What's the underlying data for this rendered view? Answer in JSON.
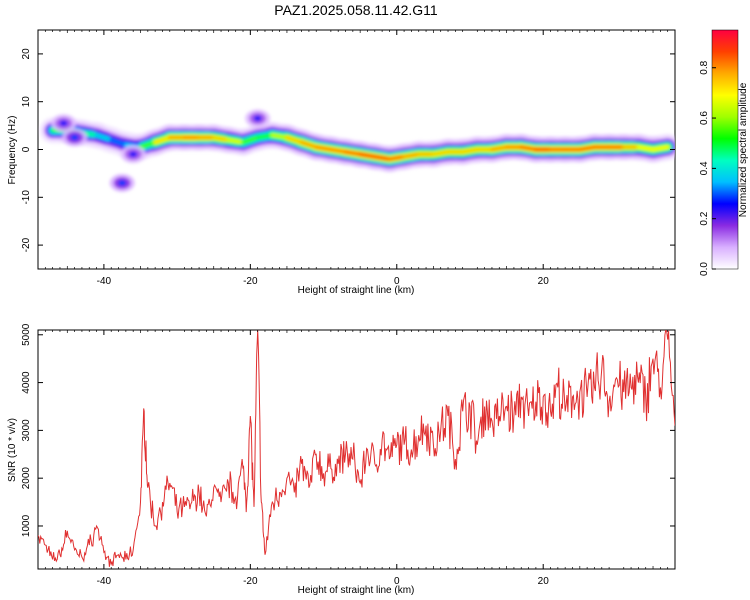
{
  "chart_data": [
    {
      "type": "heatmap",
      "title": "PAZ1.2025.058.11.42.G11",
      "xlabel": "Height of straight line (km)",
      "ylabel": "Frequency (Hz)",
      "xlim": [
        -49,
        38
      ],
      "ylim": [
        -25,
        25
      ],
      "xticks": [
        -40,
        -20,
        0,
        20
      ],
      "yticks": [
        20,
        10,
        0,
        -10,
        -20
      ],
      "grid": false,
      "colorbar": {
        "label": "Normalized spectral amplitude",
        "range": [
          0,
          0.95
        ],
        "ticks": [
          "0.0",
          "0.2",
          "0.4",
          "0.6",
          "0.8"
        ],
        "colors": [
          "#ffffff",
          "#d9b0ff",
          "#8a2be2",
          "#0000ff",
          "#00bfff",
          "#00ffc0",
          "#00ff00",
          "#a0ff00",
          "#ffff00",
          "#ffaa00",
          "#ff4000",
          "#ff0040"
        ]
      },
      "ridge": {
        "x": [
          -47,
          -45,
          -43,
          -41,
          -39,
          -37,
          -35,
          -33,
          -31,
          -29,
          -27,
          -25,
          -23,
          -21,
          -19,
          -17,
          -15,
          -13,
          -11,
          -9,
          -7,
          -5,
          -3,
          -1,
          1,
          3,
          5,
          7,
          9,
          11,
          13,
          15,
          17,
          19,
          21,
          23,
          25,
          27,
          29,
          31,
          33,
          35,
          37
        ],
        "y": [
          4,
          4,
          3.5,
          3,
          2,
          1,
          0.5,
          1.5,
          2.5,
          2.5,
          2.5,
          2.5,
          2,
          1.5,
          2.5,
          3,
          2.5,
          1.5,
          0.5,
          0,
          -0.5,
          -1,
          -1.5,
          -2,
          -1.5,
          -1,
          -1,
          -0.5,
          -0.5,
          0,
          0,
          0.5,
          0.5,
          0,
          0,
          0,
          0,
          0.5,
          0.5,
          0.5,
          0.5,
          0,
          0.5
        ],
        "amplitude": [
          0.5,
          0.55,
          0.5,
          0.45,
          0.35,
          0.3,
          0.45,
          0.7,
          0.8,
          0.85,
          0.85,
          0.8,
          0.75,
          0.65,
          0.5,
          0.6,
          0.75,
          0.8,
          0.85,
          0.85,
          0.85,
          0.9,
          0.9,
          0.9,
          0.85,
          0.8,
          0.8,
          0.75,
          0.8,
          0.75,
          0.8,
          0.85,
          0.85,
          0.9,
          0.9,
          0.85,
          0.9,
          0.85,
          0.9,
          0.85,
          0.75,
          0.7,
          0.75
        ]
      },
      "blobs": [
        {
          "x": -45.5,
          "y": 5.5,
          "amplitude": 0.25
        },
        {
          "x": -37.5,
          "y": -7,
          "amplitude": 0.3
        },
        {
          "x": -36,
          "y": -1,
          "amplitude": 0.25
        },
        {
          "x": -19,
          "y": 6.5,
          "amplitude": 0.25
        },
        {
          "x": -44,
          "y": 2.5,
          "amplitude": 0.3
        }
      ]
    },
    {
      "type": "line",
      "xlabel": "Height of straight line (km)",
      "ylabel": "SNR (10 * v/v)",
      "xlim": [
        -49,
        38
      ],
      "ylim": [
        100,
        5100
      ],
      "xticks": [
        -40,
        -20,
        0,
        20
      ],
      "yticks": [
        1000,
        2000,
        3000,
        4000,
        5000
      ],
      "grid": false,
      "color": "#e03030",
      "series": [
        {
          "x": [
            -49,
            -48,
            -47,
            -46,
            -45,
            -44,
            -43,
            -42,
            -41,
            -40,
            -39,
            -38,
            -37,
            -36,
            -35,
            -34.5,
            -34,
            -33,
            -32,
            -31,
            -30,
            -29,
            -28,
            -27,
            -26,
            -25,
            -24,
            -23,
            -22,
            -21,
            -20.5,
            -20,
            -19.5,
            -19,
            -18.5,
            -18,
            -17,
            -16,
            -15,
            -14,
            -13,
            -12,
            -11,
            -10,
            -9,
            -8,
            -7,
            -6,
            -5,
            -4,
            -3,
            -2,
            -1,
            0,
            1,
            2,
            3,
            4,
            5,
            6,
            7,
            8,
            9,
            10,
            11,
            12,
            13,
            14,
            15,
            16,
            17,
            18,
            19,
            20,
            21,
            22,
            23,
            24,
            25,
            26,
            27,
            28,
            29,
            30,
            31,
            32,
            33,
            34,
            35,
            36,
            37,
            38
          ],
          "y": [
            800,
            600,
            300,
            400,
            900,
            500,
            350,
            600,
            1000,
            450,
            200,
            400,
            300,
            500,
            1500,
            3400,
            1800,
            1000,
            1500,
            1900,
            1300,
            1400,
            1500,
            1700,
            1200,
            1800,
            1500,
            1900,
            1600,
            2200,
            1500,
            3300,
            1400,
            5100,
            1500,
            400,
            1500,
            1700,
            2000,
            1700,
            2300,
            1800,
            2500,
            2100,
            2200,
            2300,
            2500,
            2400,
            1900,
            2600,
            2300,
            2800,
            2400,
            2700,
            2700,
            2600,
            2900,
            3100,
            2700,
            3000,
            3300,
            2400,
            3400,
            3500,
            2700,
            3500,
            3200,
            3300,
            3500,
            3300,
            3700,
            3300,
            3600,
            3700,
            3400,
            3900,
            3400,
            3700,
            3800,
            3700,
            3900,
            4300,
            3600,
            4100,
            3800,
            3900,
            4000,
            3700,
            4500,
            3900,
            4900,
            3100
          ]
        }
      ]
    }
  ]
}
